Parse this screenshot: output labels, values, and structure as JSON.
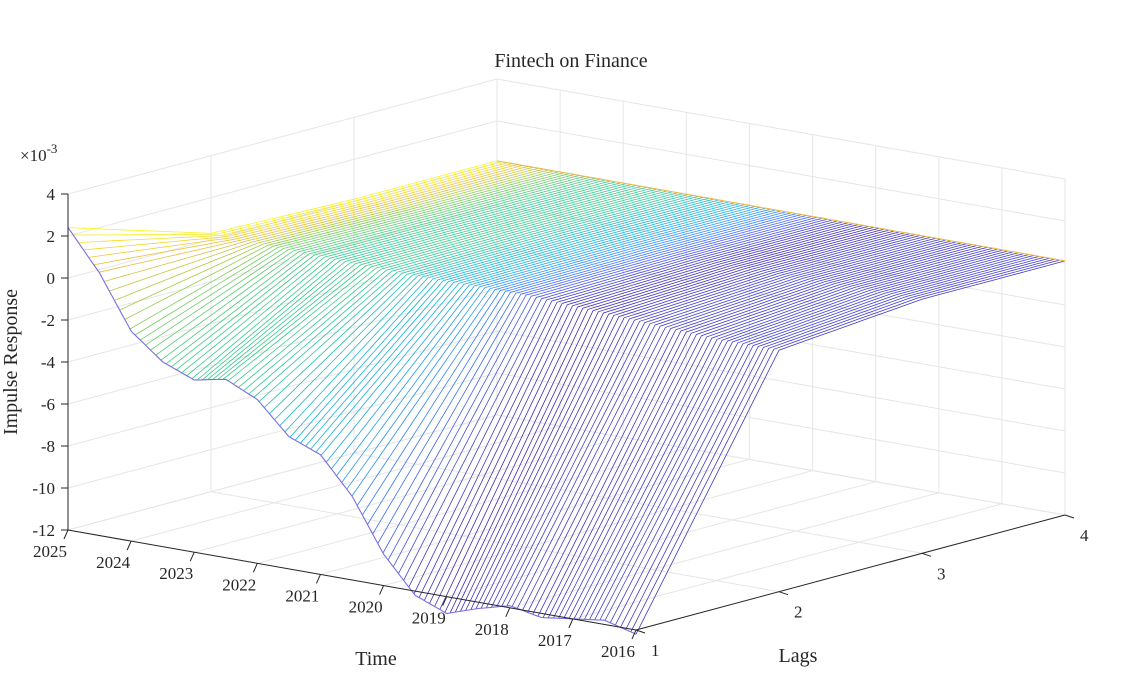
{
  "chart_data": {
    "type": "surface",
    "title": "Fintech on Finance",
    "xlabel": "Time",
    "ylabel": "Lags",
    "zlabel": "Impulse Response",
    "z_multiplier_label": "×10",
    "z_multiplier_exp": "-3",
    "x_ticks": [
      "2016",
      "2017",
      "2018",
      "2019",
      "2020",
      "2021",
      "2022",
      "2023",
      "2024",
      "2025"
    ],
    "y_ticks": [
      "1",
      "2",
      "3",
      "4"
    ],
    "z_ticks": [
      "-12",
      "-10",
      "-8",
      "-6",
      "-4",
      "-2",
      "0",
      "2",
      "4"
    ],
    "zlim": [
      -12,
      4
    ],
    "ylim": [
      1,
      4
    ],
    "xlim": [
      2016,
      2025
    ],
    "grid": true,
    "colormap": "parula",
    "mesh_style": "lines-along-time",
    "response_lag1": [
      [
        2016.0,
        -12.2
      ],
      [
        2016.5,
        -11.8
      ],
      [
        2017.0,
        -12.0
      ],
      [
        2017.5,
        -12.2
      ],
      [
        2018.0,
        -11.9
      ],
      [
        2018.5,
        -12.3
      ],
      [
        2019.0,
        -12.8
      ],
      [
        2019.5,
        -12.2
      ],
      [
        2020.0,
        -10.5
      ],
      [
        2020.5,
        -8.0
      ],
      [
        2021.0,
        -6.3
      ],
      [
        2021.5,
        -5.7
      ],
      [
        2022.0,
        -4.2
      ],
      [
        2022.5,
        -3.5
      ],
      [
        2023.0,
        -3.8
      ],
      [
        2023.5,
        -3.2
      ],
      [
        2024.0,
        -2.0
      ],
      [
        2024.5,
        0.5
      ],
      [
        2025.0,
        2.4
      ]
    ],
    "response_lag2_peak": -0.5,
    "response_lag3_peak": 0.1,
    "response_lag4_peak": 0.1
  }
}
